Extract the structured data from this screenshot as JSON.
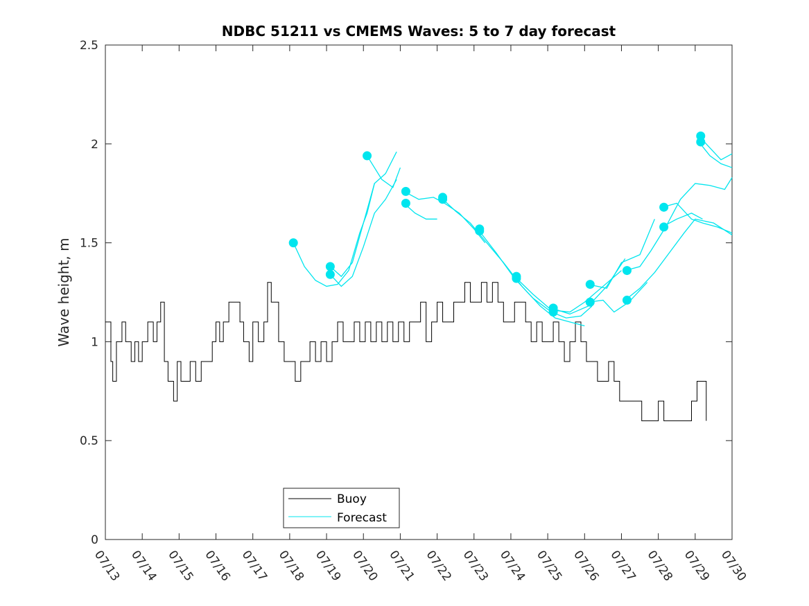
{
  "chart_data": {
    "type": "line",
    "title": "NDBC 51211 vs CMEMS Waves: 5 to 7 day forecast",
    "xlabel": "",
    "ylabel": "Wave height, m",
    "xlim": [
      "07/13",
      "07/30"
    ],
    "ylim": [
      0,
      2.5
    ],
    "x_tick_labels": [
      "07/13",
      "07/14",
      "07/15",
      "07/16",
      "07/17",
      "07/18",
      "07/19",
      "07/20",
      "07/21",
      "07/22",
      "07/23",
      "07/24",
      "07/25",
      "07/26",
      "07/27",
      "07/28",
      "07/29",
      "07/30"
    ],
    "y_ticks": [
      0,
      0.5,
      1,
      1.5,
      2,
      2.5
    ],
    "y_tick_labels": [
      "0",
      "0.5",
      "1",
      "1.5",
      "2",
      "2.5"
    ],
    "grid": false,
    "legend": {
      "position": "bottom-center",
      "entries": [
        "Buoy",
        "Forecast"
      ]
    },
    "colors": {
      "buoy": "#000000",
      "forecast": "#00e5ee"
    },
    "series": [
      {
        "name": "Buoy",
        "x_day_of_july": [
          13.0,
          13.15,
          13.2,
          13.3,
          13.45,
          13.55,
          13.7,
          13.8,
          13.9,
          14.0,
          14.15,
          14.3,
          14.4,
          14.5,
          14.6,
          14.7,
          14.85,
          14.95,
          15.05,
          15.2,
          15.3,
          15.45,
          15.6,
          15.75,
          15.9,
          16.0,
          16.1,
          16.2,
          16.35,
          16.5,
          16.65,
          16.75,
          16.9,
          17.0,
          17.15,
          17.3,
          17.4,
          17.5,
          17.7,
          17.85,
          18.0,
          18.15,
          18.3,
          18.4,
          18.55,
          18.7,
          18.85,
          19.0,
          19.15,
          19.3,
          19.45,
          19.6,
          19.75,
          19.9,
          20.05,
          20.2,
          20.35,
          20.5,
          20.65,
          20.8,
          20.95,
          21.1,
          21.25,
          21.4,
          21.55,
          21.7,
          21.85,
          22.0,
          22.15,
          22.3,
          22.45,
          22.6,
          22.75,
          22.9,
          23.05,
          23.2,
          23.35,
          23.5,
          23.65,
          23.8,
          23.95,
          24.1,
          24.25,
          24.4,
          24.55,
          24.7,
          24.85,
          25.0,
          25.15,
          25.3,
          25.45,
          25.6,
          25.75,
          25.9,
          26.05,
          26.2,
          26.35,
          26.5,
          26.65,
          26.8,
          26.95,
          27.1,
          27.25,
          27.4,
          27.55,
          27.7,
          27.85,
          28.0,
          28.15,
          28.3,
          28.45,
          28.6,
          28.75,
          28.9,
          29.05,
          29.2,
          29.3
        ],
        "values": [
          1.1,
          0.9,
          0.8,
          1.0,
          1.1,
          1.0,
          0.9,
          1.0,
          0.9,
          1.0,
          1.1,
          1.0,
          1.1,
          1.2,
          0.9,
          0.8,
          0.7,
          0.9,
          0.8,
          0.8,
          0.9,
          0.8,
          0.9,
          0.9,
          1.0,
          1.1,
          1.0,
          1.1,
          1.2,
          1.2,
          1.1,
          1.0,
          0.9,
          1.1,
          1.0,
          1.1,
          1.3,
          1.2,
          1.0,
          0.9,
          0.9,
          0.8,
          0.9,
          0.9,
          1.0,
          0.9,
          1.0,
          0.9,
          1.0,
          1.1,
          1.0,
          1.0,
          1.1,
          1.0,
          1.1,
          1.0,
          1.1,
          1.0,
          1.1,
          1.0,
          1.1,
          1.0,
          1.1,
          1.1,
          1.2,
          1.0,
          1.1,
          1.2,
          1.1,
          1.1,
          1.2,
          1.2,
          1.3,
          1.2,
          1.2,
          1.3,
          1.2,
          1.3,
          1.2,
          1.1,
          1.1,
          1.2,
          1.2,
          1.1,
          1.0,
          1.1,
          1.0,
          1.0,
          1.1,
          1.0,
          0.9,
          1.0,
          1.1,
          1.0,
          0.9,
          0.9,
          0.8,
          0.8,
          0.9,
          0.8,
          0.7,
          0.7,
          0.7,
          0.7,
          0.6,
          0.6,
          0.6,
          0.7,
          0.6,
          0.6,
          0.6,
          0.6,
          0.6,
          0.7,
          0.8,
          0.8,
          0.6
        ]
      },
      {
        "name": "Forecast",
        "runs": [
          {
            "x_day_of_july": [
              18.1,
              18.4,
              18.7,
              19.0,
              19.3,
              19.6,
              19.9,
              20.1,
              20.3
            ],
            "values": [
              1.5,
              1.38,
              1.31,
              1.28,
              1.29,
              1.36,
              1.55,
              1.65,
              1.8
            ]
          },
          {
            "x_day_of_july": [
              19.1,
              19.4,
              19.7,
              20.0,
              20.3,
              20.6,
              20.9
            ],
            "values": [
              1.38,
              1.33,
              1.4,
              1.6,
              1.8,
              1.85,
              1.96
            ]
          },
          {
            "x_day_of_july": [
              19.1,
              19.4,
              19.7,
              20.0,
              20.3,
              20.6,
              20.9
            ],
            "values": [
              1.34,
              1.28,
              1.33,
              1.48,
              1.65,
              1.72,
              1.82
            ]
          },
          {
            "x_day_of_july": [
              20.1,
              20.5,
              20.8,
              21.0
            ],
            "values": [
              1.94,
              1.82,
              1.78,
              1.88
            ]
          },
          {
            "x_day_of_july": [
              21.1,
              21.5,
              21.9,
              22.2,
              22.6,
              23.0,
              23.3
            ],
            "values": [
              1.76,
              1.72,
              1.73,
              1.7,
              1.65,
              1.57,
              1.5
            ]
          },
          {
            "x_day_of_july": [
              21.1,
              21.4,
              21.7,
              22.0
            ],
            "values": [
              1.7,
              1.65,
              1.62,
              1.62
            ]
          },
          {
            "x_day_of_july": [
              22.1,
              22.5,
              22.9,
              23.3,
              23.8,
              24.3,
              24.8,
              25.2,
              25.6,
              26.0
            ],
            "values": [
              1.73,
              1.66,
              1.6,
              1.51,
              1.4,
              1.28,
              1.18,
              1.12,
              1.1,
              1.08
            ]
          },
          {
            "x_day_of_july": [
              23.1,
              23.6,
              24.1,
              24.6,
              25.1,
              25.5,
              25.9,
              26.2
            ],
            "values": [
              1.57,
              1.45,
              1.32,
              1.22,
              1.15,
              1.12,
              1.13,
              1.18
            ]
          },
          {
            "x_day_of_july": [
              24.1,
              24.6,
              25.1,
              25.6,
              26.0,
              26.5,
              27.0
            ],
            "values": [
              1.33,
              1.24,
              1.16,
              1.15,
              1.2,
              1.28,
              1.36
            ]
          },
          {
            "x_day_of_july": [
              25.1,
              25.6,
              26.1,
              26.6,
              27.1
            ],
            "values": [
              1.17,
              1.14,
              1.18,
              1.28,
              1.42
            ]
          },
          {
            "x_day_of_july": [
              26.1,
              26.6,
              27.0,
              27.5,
              27.9
            ],
            "values": [
              1.29,
              1.27,
              1.4,
              1.44,
              1.62
            ]
          },
          {
            "x_day_of_july": [
              26.1,
              26.5,
              26.8,
              27.2,
              27.7
            ],
            "values": [
              1.2,
              1.21,
              1.15,
              1.2,
              1.3
            ]
          },
          {
            "x_day_of_july": [
              27.1,
              27.5,
              27.8,
              28.2,
              28.6,
              29.0,
              29.4,
              29.8,
              30.0
            ],
            "values": [
              1.36,
              1.38,
              1.46,
              1.58,
              1.72,
              1.8,
              1.79,
              1.77,
              1.83
            ]
          },
          {
            "x_day_of_july": [
              27.1,
              27.5,
              27.9,
              28.3,
              28.7,
              29.0,
              29.5,
              30.0
            ],
            "values": [
              1.21,
              1.27,
              1.35,
              1.45,
              1.55,
              1.62,
              1.6,
              1.54
            ]
          },
          {
            "x_day_of_july": [
              28.1,
              28.5,
              28.9,
              29.2,
              29.6,
              30.0
            ],
            "values": [
              1.68,
              1.7,
              1.62,
              1.6,
              1.58,
              1.55
            ]
          },
          {
            "x_day_of_july": [
              28.1,
              28.5,
              28.9,
              29.2
            ],
            "values": [
              1.58,
              1.62,
              1.65,
              1.62
            ]
          },
          {
            "x_day_of_july": [
              29.1,
              29.4,
              29.7,
              30.0
            ],
            "values": [
              2.04,
              1.98,
              1.92,
              1.95
            ]
          },
          {
            "x_day_of_july": [
              29.1,
              29.4,
              29.7,
              30.0
            ],
            "values": [
              2.01,
              1.94,
              1.9,
              1.88
            ]
          }
        ],
        "markers": [
          {
            "x": 18.1,
            "y": 1.5
          },
          {
            "x": 19.1,
            "y": 1.38
          },
          {
            "x": 19.1,
            "y": 1.34
          },
          {
            "x": 20.1,
            "y": 1.94
          },
          {
            "x": 21.15,
            "y": 1.76
          },
          {
            "x": 21.15,
            "y": 1.7
          },
          {
            "x": 22.15,
            "y": 1.73
          },
          {
            "x": 22.15,
            "y": 1.72
          },
          {
            "x": 23.15,
            "y": 1.57
          },
          {
            "x": 23.15,
            "y": 1.56
          },
          {
            "x": 24.15,
            "y": 1.33
          },
          {
            "x": 24.15,
            "y": 1.32
          },
          {
            "x": 25.15,
            "y": 1.17
          },
          {
            "x": 25.15,
            "y": 1.15
          },
          {
            "x": 26.15,
            "y": 1.29
          },
          {
            "x": 26.15,
            "y": 1.2
          },
          {
            "x": 27.15,
            "y": 1.36
          },
          {
            "x": 27.15,
            "y": 1.21
          },
          {
            "x": 28.15,
            "y": 1.68
          },
          {
            "x": 28.15,
            "y": 1.58
          },
          {
            "x": 29.15,
            "y": 2.04
          },
          {
            "x": 29.15,
            "y": 2.01
          }
        ]
      }
    ]
  }
}
